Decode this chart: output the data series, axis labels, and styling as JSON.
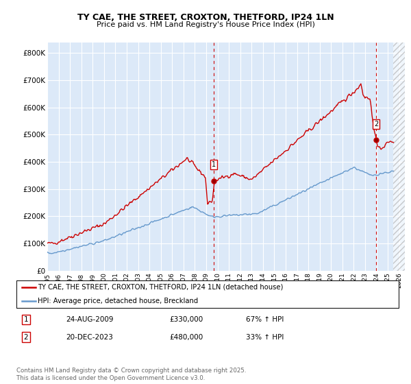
{
  "title": "TY CAE, THE STREET, CROXTON, THETFORD, IP24 1LN",
  "subtitle": "Price paid vs. HM Land Registry's House Price Index (HPI)",
  "ylabel_ticks": [
    "£0",
    "£100K",
    "£200K",
    "£300K",
    "£400K",
    "£500K",
    "£600K",
    "£700K",
    "£800K"
  ],
  "ytick_values": [
    0,
    100000,
    200000,
    300000,
    400000,
    500000,
    600000,
    700000,
    800000
  ],
  "ylim": [
    0,
    840000
  ],
  "xlim_start": 1995.0,
  "xlim_end": 2026.5,
  "xtick_years": [
    1995,
    1996,
    1997,
    1998,
    1999,
    2000,
    2001,
    2002,
    2003,
    2004,
    2005,
    2006,
    2007,
    2008,
    2009,
    2010,
    2011,
    2012,
    2013,
    2014,
    2015,
    2016,
    2017,
    2018,
    2019,
    2020,
    2021,
    2022,
    2023,
    2024,
    2025,
    2026
  ],
  "bg_color": "#dce9f8",
  "hatch_region_start": 2025.5,
  "red_line_color": "#cc0000",
  "blue_line_color": "#6699cc",
  "marker1_x": 2009.65,
  "marker1_y": 330000,
  "marker2_x": 2023.97,
  "marker2_y": 480000,
  "legend_red_label": "TY CAE, THE STREET, CROXTON, THETFORD, IP24 1LN (detached house)",
  "legend_blue_label": "HPI: Average price, detached house, Breckland",
  "table_row1": [
    "1",
    "24-AUG-2009",
    "£330,000",
    "67% ↑ HPI"
  ],
  "table_row2": [
    "2",
    "20-DEC-2023",
    "£480,000",
    "33% ↑ HPI"
  ],
  "footer": "Contains HM Land Registry data © Crown copyright and database right 2025.\nThis data is licensed under the Open Government Licence v3.0."
}
